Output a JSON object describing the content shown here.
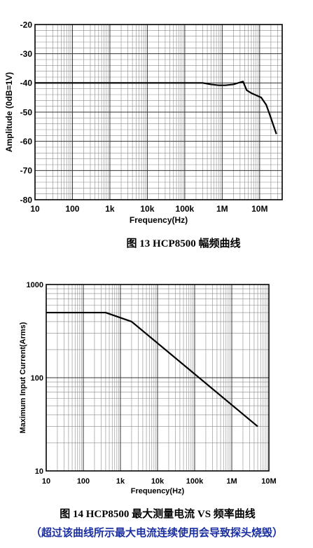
{
  "chart_data": [
    {
      "type": "line",
      "title": "",
      "xlabel": "Frequency(Hz)",
      "ylabel": "Amplitude (0dB=1V)",
      "xscale": "log",
      "xlim": [
        10,
        40000000
      ],
      "ylim": [
        -80,
        -20
      ],
      "grid": true,
      "xticks": [
        {
          "v": 10,
          "label": "10"
        },
        {
          "v": 100,
          "label": "100"
        },
        {
          "v": 1000,
          "label": "1k"
        },
        {
          "v": 10000,
          "label": "10k"
        },
        {
          "v": 100000,
          "label": "100k"
        },
        {
          "v": 1000000,
          "label": "1M"
        },
        {
          "v": 10000000,
          "label": "10M"
        }
      ],
      "yticks": [
        {
          "v": -20,
          "label": "-20"
        },
        {
          "v": -30,
          "label": "-30"
        },
        {
          "v": -40,
          "label": "-40"
        },
        {
          "v": -50,
          "label": "-50"
        },
        {
          "v": -60,
          "label": "-60"
        },
        {
          "v": -70,
          "label": "-70"
        },
        {
          "v": -80,
          "label": "-80"
        }
      ],
      "series": [
        {
          "x": [
            10,
            100000,
            300000,
            500000,
            800000,
            1200000,
            2000000,
            3000000,
            3600000,
            4500000,
            6000000,
            8000000,
            11000000,
            15000000,
            20000000,
            28000000
          ],
          "y": [
            -40,
            -40,
            -40,
            -40.5,
            -40.8,
            -40.8,
            -40.5,
            -39.8,
            -39.5,
            -42.5,
            -43.5,
            -44.2,
            -45,
            -47.5,
            -52,
            -57.5
          ]
        }
      ],
      "caption": "图 13 HCP8500 幅频曲线"
    },
    {
      "type": "line",
      "title": "",
      "xlabel": "Frequency(Hz)",
      "ylabel": "Maximum Input Current(Arms)",
      "xscale": "log",
      "yscale": "log",
      "xlim": [
        10,
        10000000
      ],
      "ylim": [
        10,
        1000
      ],
      "grid": true,
      "xticks": [
        {
          "v": 10,
          "label": "10"
        },
        {
          "v": 100,
          "label": "100"
        },
        {
          "v": 1000,
          "label": "1k"
        },
        {
          "v": 10000,
          "label": "10k"
        },
        {
          "v": 100000,
          "label": "100k"
        },
        {
          "v": 1000000,
          "label": "1M"
        },
        {
          "v": 10000000,
          "label": "10M"
        }
      ],
      "yticks": [
        {
          "v": 10,
          "label": "10"
        },
        {
          "v": 100,
          "label": "100"
        },
        {
          "v": 1000,
          "label": "1000"
        }
      ],
      "series": [
        {
          "x": [
            10,
            400,
            2000,
            5000000
          ],
          "y": [
            500,
            500,
            400,
            30
          ]
        }
      ],
      "caption": "图 14 HCP8500 最大测量电流 VS 频率曲线",
      "note": "（超过该曲线所示最大电流连续使用会导致探头烧毁）"
    }
  ]
}
